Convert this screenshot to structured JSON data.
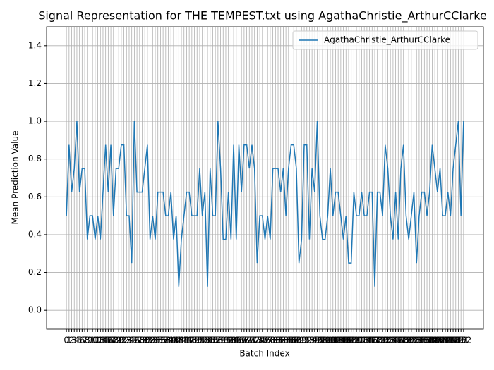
{
  "chart_data": {
    "type": "line",
    "title": "Signal Representation for THE TEMPEST.txt using AgathaChristie_ArthurCClarke",
    "x_label": "Batch Index",
    "y_label": "Mean Prediction Value",
    "x": [
      0,
      1,
      2,
      3,
      4,
      5,
      6,
      7,
      8,
      9,
      10,
      11,
      12,
      13,
      14,
      15,
      16,
      17,
      18,
      19,
      20,
      21,
      22,
      23,
      24,
      25,
      26,
      27,
      28,
      29,
      30,
      31,
      32,
      33,
      34,
      35,
      36,
      37,
      38,
      39,
      40,
      41,
      42,
      43,
      44,
      45,
      46,
      47,
      48,
      49,
      50,
      51,
      52,
      53,
      54,
      55,
      56,
      57,
      58,
      59,
      60,
      61,
      62,
      63,
      64,
      65,
      66,
      67,
      68,
      69,
      70,
      71,
      72,
      73,
      74,
      75,
      76,
      77,
      78,
      79,
      80,
      81,
      82,
      83,
      84,
      85,
      86,
      87,
      88,
      89,
      90,
      91,
      92,
      93,
      94,
      95,
      96,
      97,
      98,
      99,
      100,
      101,
      102,
      103,
      104,
      105,
      106,
      107,
      108,
      109,
      110,
      111,
      112,
      113,
      114,
      115,
      116,
      117,
      118,
      119,
      120,
      121,
      122,
      123,
      124,
      125,
      126,
      127,
      128,
      129,
      130,
      131,
      132,
      133,
      134,
      135,
      136,
      137,
      138,
      139,
      140,
      141,
      142,
      143,
      144,
      145,
      146,
      147,
      148,
      149,
      150,
      151,
      152
    ],
    "series": [
      {
        "name": "AgathaChristie_ArthurCClarke",
        "color": "#1f77b4",
        "values": [
          0.5,
          0.875,
          0.625,
          0.75,
          1.0,
          0.625,
          0.75,
          0.75,
          0.375,
          0.5,
          0.5,
          0.375,
          0.5,
          0.375,
          0.625,
          0.875,
          0.625,
          0.875,
          0.5,
          0.75,
          0.75,
          0.875,
          0.875,
          0.5,
          0.5,
          0.25,
          1.0,
          0.625,
          0.625,
          0.625,
          0.75,
          0.875,
          0.375,
          0.5,
          0.375,
          0.625,
          0.625,
          0.625,
          0.5,
          0.5,
          0.625,
          0.375,
          0.5,
          0.125,
          0.375,
          0.5,
          0.625,
          0.625,
          0.5,
          0.5,
          0.5,
          0.75,
          0.5,
          0.625,
          0.125,
          0.75,
          0.5,
          0.5,
          1.0,
          0.75,
          0.375,
          0.375,
          0.625,
          0.375,
          0.875,
          0.375,
          0.875,
          0.625,
          0.875,
          0.875,
          0.75,
          0.875,
          0.75,
          0.25,
          0.5,
          0.5,
          0.375,
          0.5,
          0.375,
          0.75,
          0.75,
          0.75,
          0.625,
          0.75,
          0.5,
          0.75,
          0.875,
          0.875,
          0.75,
          0.25,
          0.375,
          0.875,
          0.875,
          0.375,
          0.75,
          0.625,
          1.0,
          0.5,
          0.375,
          0.375,
          0.5,
          0.75,
          0.5,
          0.625,
          0.625,
          0.5,
          0.375,
          0.5,
          0.25,
          0.25,
          0.625,
          0.5,
          0.5,
          0.625,
          0.5,
          0.5,
          0.625,
          0.625,
          0.125,
          0.625,
          0.625,
          0.5,
          0.875,
          0.75,
          0.5,
          0.375,
          0.625,
          0.375,
          0.75,
          0.875,
          0.5,
          0.375,
          0.5,
          0.625,
          0.25,
          0.5,
          0.625,
          0.625,
          0.5,
          0.625,
          0.875,
          0.75,
          0.625,
          0.75,
          0.5,
          0.5,
          0.625,
          0.5,
          0.75,
          0.875,
          1.0,
          0.5,
          1.0
        ]
      }
    ],
    "xlim": [
      -7.6,
      159.6
    ],
    "xticks": [
      0,
      1,
      2,
      3,
      4,
      5,
      6,
      7,
      8,
      9,
      10,
      11,
      12,
      13,
      14,
      15,
      16,
      17,
      18,
      19,
      20,
      21,
      22,
      23,
      24,
      25,
      26,
      27,
      28,
      29,
      30,
      31,
      32,
      33,
      34,
      35,
      36,
      37,
      38,
      39,
      40,
      41,
      42,
      43,
      44,
      45,
      46,
      47,
      48,
      49,
      50,
      51,
      52,
      53,
      54,
      55,
      56,
      57,
      58,
      59,
      60,
      61,
      62,
      63,
      64,
      65,
      66,
      67,
      68,
      69,
      70,
      71,
      72,
      73,
      74,
      75,
      76,
      77,
      78,
      79,
      80,
      81,
      82,
      83,
      84,
      85,
      86,
      87,
      88,
      89,
      90,
      91,
      92,
      93,
      94,
      95,
      96,
      97,
      98,
      99,
      100,
      101,
      102,
      103,
      104,
      105,
      106,
      107,
      108,
      109,
      110,
      111,
      112,
      113,
      114,
      115,
      116,
      117,
      118,
      119,
      120,
      121,
      122,
      123,
      124,
      125,
      126,
      127,
      128,
      129,
      130,
      131,
      132,
      133,
      134,
      135,
      136,
      137,
      138,
      139,
      140,
      141,
      142,
      143,
      144,
      145,
      146,
      147,
      148,
      149,
      150,
      151,
      152
    ],
    "ylim": [
      -0.1,
      1.5
    ],
    "yticks": [
      {
        "value": 0,
        "label": "0.0"
      },
      0.2,
      0.4,
      0.6,
      0.8,
      {
        "value": 1,
        "label": "1.0"
      },
      1.2,
      1.4
    ],
    "grid": true,
    "legend": "upper right"
  }
}
